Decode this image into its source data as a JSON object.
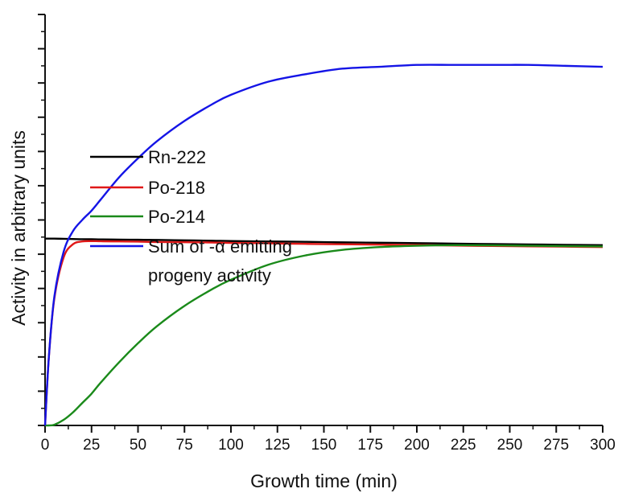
{
  "chart_data": {
    "type": "line",
    "title": "",
    "xlabel": "Growth time (min)",
    "ylabel": "Activity in arbitrary units",
    "xlim": [
      0,
      300
    ],
    "ylim": [
      0,
      2.2
    ],
    "x_ticks": [
      "0",
      "25",
      "50",
      "75",
      "100",
      "125",
      "150",
      "175",
      "200",
      "225",
      "250",
      "275",
      "300"
    ],
    "y_tick_labels_shown": false,
    "grid": false,
    "legend_position": "center-left",
    "x": [
      0,
      2,
      5,
      10,
      15,
      20,
      25,
      30,
      40,
      50,
      60,
      75,
      90,
      100,
      120,
      140,
      160,
      180,
      200,
      220,
      240,
      260,
      280,
      300
    ],
    "series": [
      {
        "name": "Rn-222",
        "color": "#000000",
        "values": [
          1.0,
          1.0,
          1.0,
          0.999,
          0.998,
          0.997,
          0.997,
          0.996,
          0.995,
          0.994,
          0.993,
          0.991,
          0.989,
          0.987,
          0.985,
          0.983,
          0.98,
          0.978,
          0.976,
          0.973,
          0.971,
          0.969,
          0.967,
          0.965
        ]
      },
      {
        "name": "Po-218",
        "color": "#e01818",
        "values": [
          0.0,
          0.36,
          0.68,
          0.9,
          0.97,
          0.985,
          0.987,
          0.986,
          0.985,
          0.984,
          0.982,
          0.981,
          0.979,
          0.977,
          0.975,
          0.972,
          0.97,
          0.968,
          0.966,
          0.963,
          0.961,
          0.959,
          0.957,
          0.955
        ]
      },
      {
        "name": "Po-214",
        "color": "#1a8a1a",
        "values": [
          0.0,
          0.0,
          0.004,
          0.03,
          0.07,
          0.12,
          0.17,
          0.23,
          0.34,
          0.44,
          0.53,
          0.64,
          0.73,
          0.78,
          0.86,
          0.91,
          0.94,
          0.955,
          0.962,
          0.965,
          0.964,
          0.962,
          0.96,
          0.958
        ]
      },
      {
        "name": "Sum of -α emitting progeny activity",
        "color": "#1414e6",
        "values": [
          0.0,
          0.36,
          0.69,
          0.93,
          1.04,
          1.1,
          1.15,
          1.21,
          1.33,
          1.43,
          1.52,
          1.63,
          1.72,
          1.77,
          1.84,
          1.88,
          1.91,
          1.92,
          1.93,
          1.93,
          1.93,
          1.93,
          1.925,
          1.92
        ]
      }
    ],
    "legend": {
      "lines": [
        [
          "Rn-222"
        ],
        [
          "Po-218"
        ],
        [
          "Po-214"
        ],
        [
          "Sum of -α emitting",
          "progeny activity"
        ]
      ]
    }
  }
}
